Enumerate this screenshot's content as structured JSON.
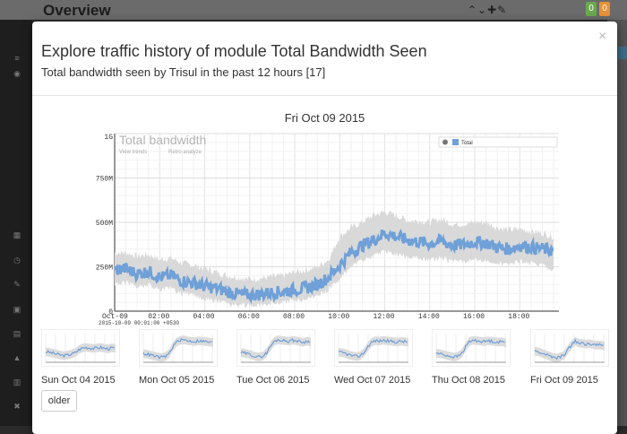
{
  "background": {
    "page_title": "Overview",
    "tools_glyph": "⌃⌄✚✎",
    "badges": [
      {
        "text": "0",
        "color": "#6aa84f"
      },
      {
        "text": "0",
        "color": "#e69138"
      }
    ],
    "sidebar_icons": [
      "dashboard-icon",
      "grid-icon",
      "clock-icon",
      "wrench-icon",
      "lock-icon",
      "image-icon",
      "bell-icon",
      "calendar-icon",
      "tools-icon"
    ]
  },
  "modal": {
    "title": "Explore traffic history of module Total Bandwidth Seen",
    "subtitle": "Total bandwidth seen by Trisul in the past 12 hours [17]",
    "close_label": "×",
    "older_label": "older"
  },
  "chart_data": {
    "type": "area",
    "heading": "Fri Oct 09 2015",
    "title": "Total bandwidth",
    "links": [
      "View trends",
      "Retro analyze"
    ],
    "legend": [
      "Total"
    ],
    "legend_placement": "top-right",
    "x_ticks": [
      "Oct-09",
      "02:00",
      "04:00",
      "06:00",
      "08:00",
      "10:00",
      "12:00",
      "14:00",
      "16:00",
      "18:00"
    ],
    "x_start_label": "2015-10-09 00:01:00 +0530",
    "y_ticks": [
      "0",
      "250M",
      "500M",
      "750M",
      "1G"
    ],
    "ylim": [
      0,
      1000000000
    ],
    "grid": true,
    "series": [
      {
        "name": "Total",
        "color": "#6fa0d8",
        "x_hours": [
          0,
          0.5,
          1,
          1.5,
          2,
          2.5,
          3,
          3.5,
          4,
          4.5,
          5,
          5.5,
          6,
          6.5,
          7,
          7.5,
          8,
          8.5,
          9,
          9.5,
          10,
          10.5,
          11,
          11.5,
          12,
          12.5,
          13,
          13.5,
          14,
          14.5,
          15,
          15.5,
          16,
          16.5,
          17,
          17.5,
          18,
          18.5,
          19,
          19.5
        ],
        "values": [
          230,
          240,
          210,
          225,
          190,
          200,
          170,
          160,
          140,
          130,
          110,
          95,
          90,
          95,
          105,
          110,
          120,
          130,
          150,
          190,
          260,
          330,
          370,
          400,
          440,
          420,
          400,
          390,
          380,
          395,
          370,
          375,
          390,
          385,
          360,
          350,
          370,
          360,
          350,
          340
        ],
        "band_low": [
          150,
          160,
          140,
          150,
          120,
          130,
          100,
          90,
          70,
          60,
          40,
          35,
          30,
          35,
          45,
          50,
          60,
          70,
          90,
          120,
          180,
          250,
          290,
          310,
          340,
          320,
          310,
          300,
          290,
          300,
          280,
          280,
          290,
          290,
          270,
          260,
          280,
          270,
          260,
          230
        ],
        "band_high": [
          330,
          330,
          310,
          320,
          290,
          300,
          270,
          260,
          240,
          220,
          200,
          190,
          180,
          185,
          195,
          200,
          220,
          230,
          250,
          290,
          420,
          470,
          500,
          540,
          560,
          540,
          510,
          510,
          500,
          520,
          490,
          490,
          500,
          500,
          470,
          460,
          460,
          450,
          440,
          420
        ],
        "value_unit_multiplier": 1000000
      }
    ]
  },
  "history": [
    {
      "label": "Sun Oct 04 2015",
      "profile": [
        220,
        210,
        190,
        170,
        150,
        140,
        150,
        170,
        200,
        260,
        300,
        310,
        300,
        290,
        300,
        310,
        290,
        280,
        300,
        290
      ]
    },
    {
      "label": "Mon Oct 05 2015",
      "profile": [
        180,
        170,
        150,
        130,
        110,
        100,
        120,
        180,
        320,
        420,
        460,
        470,
        450,
        440,
        430,
        450,
        440,
        430,
        420,
        410
      ]
    },
    {
      "label": "Tue Oct 06 2015",
      "profile": [
        200,
        190,
        170,
        150,
        120,
        110,
        130,
        200,
        330,
        430,
        470,
        460,
        450,
        440,
        460,
        450,
        430,
        420,
        440,
        420
      ]
    },
    {
      "label": "Wed Oct 07 2015",
      "profile": [
        210,
        200,
        180,
        150,
        130,
        120,
        140,
        210,
        330,
        420,
        450,
        440,
        460,
        450,
        440,
        430,
        420,
        440,
        430,
        410
      ]
    },
    {
      "label": "Thu Oct 08 2015",
      "profile": [
        190,
        180,
        160,
        140,
        120,
        110,
        130,
        190,
        320,
        430,
        460,
        450,
        440,
        430,
        450,
        440,
        430,
        420,
        430,
        400
      ]
    },
    {
      "label": "Fri Oct 09 2015",
      "profile": [
        230,
        220,
        190,
        160,
        130,
        100,
        90,
        110,
        150,
        260,
        370,
        440,
        400,
        390,
        380,
        390,
        370,
        360,
        360,
        340
      ]
    }
  ]
}
